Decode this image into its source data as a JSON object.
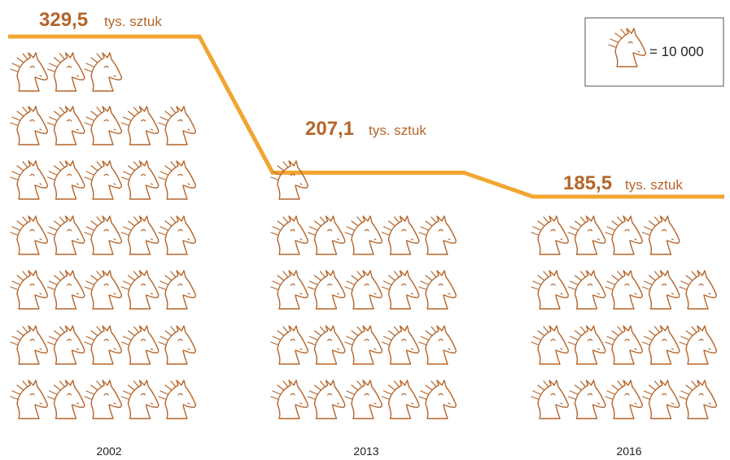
{
  "colors": {
    "line": "#f0a630",
    "icon": "#b5652a",
    "caption": "#1a96d2",
    "legend_border": "#555555"
  },
  "chart_data": {
    "type": "pictogram",
    "icon": "horse-head-icon",
    "unit_value": 10000,
    "legend_text": "= 10 000",
    "unit_label": "tys. sztuk",
    "categories": [
      "2002",
      "2013",
      "2016"
    ],
    "values": [
      329.5,
      207.1,
      185.5
    ],
    "value_labels": [
      "329,5",
      "207,1",
      "185,5"
    ],
    "icon_counts": [
      33,
      21,
      19
    ]
  }
}
